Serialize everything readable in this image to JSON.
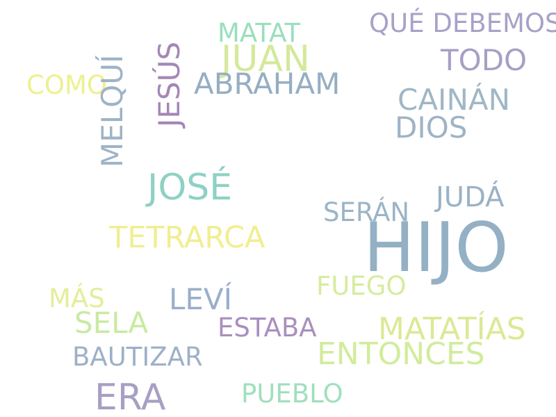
{
  "cloud": {
    "words": [
      {
        "text": "HIJO",
        "color": "#94b0c4"
      },
      {
        "text": "JOSÉ",
        "color": "#8ed1c4"
      },
      {
        "text": "ERA",
        "color": "#a89fc4"
      },
      {
        "text": "JUAN",
        "color": "#d4e99a"
      },
      {
        "text": "MATATÍAS",
        "color": "#dbe995"
      },
      {
        "text": "ENTONCES",
        "color": "#d2ec9b"
      },
      {
        "text": "TETRARCA",
        "color": "#f1ee91"
      },
      {
        "text": "CAINÁN",
        "color": "#9fb7c5"
      },
      {
        "text": "TODO",
        "color": "#a79fc4"
      },
      {
        "text": "DIOS",
        "color": "#9fb3c6"
      },
      {
        "text": "ABRAHAM",
        "color": "#95aec3"
      },
      {
        "text": "SELA",
        "color": "#c8eba1"
      },
      {
        "text": "LEVÍ",
        "color": "#9aaec9"
      },
      {
        "text": "JUDÁ",
        "color": "#9bb2c6"
      },
      {
        "text": "QUÉ DEBEMOS",
        "color": "#a9a1c8"
      },
      {
        "text": "BAUTIZAR",
        "color": "#9eb0c8"
      },
      {
        "text": "PUEBLO",
        "color": "#a0dfbd"
      },
      {
        "text": "FUEGO",
        "color": "#d6ec9e"
      },
      {
        "text": "SERÁN",
        "color": "#9bb4c6"
      },
      {
        "text": "ESTABA",
        "color": "#a98fbe"
      },
      {
        "text": "MATAT",
        "color": "#99dfbd"
      },
      {
        "text": "COMO",
        "color": "#eef08f"
      },
      {
        "text": "MÁS",
        "color": "#e3ee9a"
      },
      {
        "text": "JESÚS",
        "color": "#a487b6",
        "orientation": "vertical"
      },
      {
        "text": "MELQUÍ",
        "color": "#9eb3c6",
        "orientation": "vertical"
      }
    ]
  }
}
